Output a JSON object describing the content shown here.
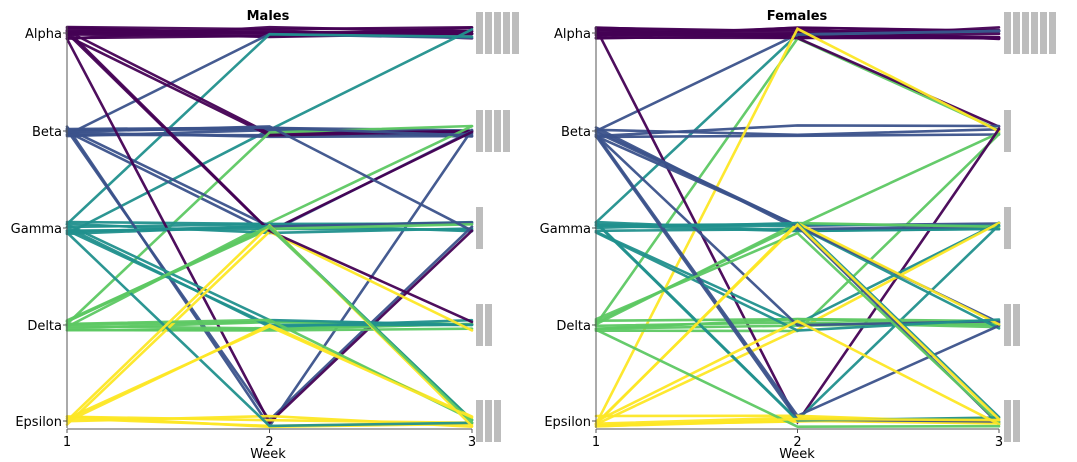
{
  "chart_data": [
    {
      "type": "line",
      "title": "Males",
      "xlabel": "Week",
      "ylabel": "",
      "x": [
        1,
        2,
        3
      ],
      "x_tick_labels": [
        "1",
        "2",
        "3"
      ],
      "categories": [
        "Alpha",
        "Beta",
        "Gamma",
        "Delta",
        "Epsilon"
      ],
      "colors": {
        "Alpha": "#440154",
        "Beta": "#3b528b",
        "Gamma": "#21908d",
        "Delta": "#5dc863",
        "Epsilon": "#fde725"
      },
      "count_bars_week3": [
        5,
        4,
        1,
        2,
        3
      ],
      "trajectories": [
        [
          "Alpha",
          "Alpha",
          "Alpha"
        ],
        [
          "Alpha",
          "Alpha",
          "Alpha"
        ],
        [
          "Alpha",
          "Alpha",
          "Alpha"
        ],
        [
          "Alpha",
          "Alpha",
          "Alpha"
        ],
        [
          "Alpha",
          "Alpha",
          "Alpha"
        ],
        [
          "Alpha",
          "Alpha",
          "Alpha"
        ],
        [
          "Alpha",
          "Alpha",
          "Alpha"
        ],
        [
          "Alpha",
          "Alpha",
          "Alpha"
        ],
        [
          "Alpha",
          "Alpha",
          "Alpha"
        ],
        [
          "Alpha",
          "Alpha",
          "Alpha"
        ],
        [
          "Alpha",
          "Alpha",
          "Alpha"
        ],
        [
          "Beta",
          "Alpha",
          "Alpha"
        ],
        [
          "Gamma",
          "Alpha",
          "Alpha"
        ],
        [
          "Gamma",
          "Beta",
          "Alpha"
        ],
        [
          "Beta",
          "Beta",
          "Beta"
        ],
        [
          "Beta",
          "Beta",
          "Beta"
        ],
        [
          "Beta",
          "Beta",
          "Beta"
        ],
        [
          "Beta",
          "Beta",
          "Beta"
        ],
        [
          "Beta",
          "Beta",
          "Beta"
        ],
        [
          "Alpha",
          "Beta",
          "Beta"
        ],
        [
          "Alpha",
          "Beta",
          "Beta"
        ],
        [
          "Beta",
          "Gamma",
          "Beta"
        ],
        [
          "Delta",
          "Gamma",
          "Beta"
        ],
        [
          "Delta",
          "Beta",
          "Beta"
        ],
        [
          "Beta",
          "Epsilon",
          "Beta"
        ],
        [
          "Beta",
          "Beta",
          "Beta"
        ],
        [
          "Alpha",
          "Gamma",
          "Beta"
        ],
        [
          "Gamma",
          "Gamma",
          "Gamma"
        ],
        [
          "Gamma",
          "Gamma",
          "Gamma"
        ],
        [
          "Gamma",
          "Gamma",
          "Gamma"
        ],
        [
          "Gamma",
          "Gamma",
          "Gamma"
        ],
        [
          "Gamma",
          "Gamma",
          "Gamma"
        ],
        [
          "Beta",
          "Gamma",
          "Gamma"
        ],
        [
          "Beta",
          "Epsilon",
          "Gamma"
        ],
        [
          "Delta",
          "Gamma",
          "Gamma"
        ],
        [
          "Beta",
          "Beta",
          "Gamma"
        ],
        [
          "Alpha",
          "Epsilon",
          "Gamma"
        ],
        [
          "Delta",
          "Delta",
          "Delta"
        ],
        [
          "Delta",
          "Delta",
          "Delta"
        ],
        [
          "Delta",
          "Delta",
          "Delta"
        ],
        [
          "Delta",
          "Delta",
          "Delta"
        ],
        [
          "Delta",
          "Delta",
          "Delta"
        ],
        [
          "Gamma",
          "Delta",
          "Delta"
        ],
        [
          "Gamma",
          "Delta",
          "Delta"
        ],
        [
          "Gamma",
          "Delta",
          "Delta"
        ],
        [
          "Epsilon",
          "Gamma",
          "Delta"
        ],
        [
          "Alpha",
          "Gamma",
          "Delta"
        ],
        [
          "Epsilon",
          "Epsilon",
          "Epsilon"
        ],
        [
          "Epsilon",
          "Epsilon",
          "Epsilon"
        ],
        [
          "Epsilon",
          "Epsilon",
          "Epsilon"
        ],
        [
          "Epsilon",
          "Epsilon",
          "Epsilon"
        ],
        [
          "Delta",
          "Gamma",
          "Epsilon"
        ],
        [
          "Gamma",
          "Gamma",
          "Epsilon"
        ],
        [
          "Epsilon",
          "Delta",
          "Epsilon"
        ],
        [
          "Delta",
          "Delta",
          "Epsilon"
        ],
        [
          "Gamma",
          "Epsilon",
          "Epsilon"
        ],
        [
          "Epsilon",
          "Gamma",
          "Epsilon"
        ],
        [
          "Delta",
          "Gamma",
          "Epsilon"
        ],
        [
          "Epsilon",
          "Delta",
          "Epsilon"
        ]
      ]
    },
    {
      "type": "line",
      "title": "Females",
      "xlabel": "Week",
      "ylabel": "",
      "x": [
        1,
        2,
        3
      ],
      "x_tick_labels": [
        "1",
        "2",
        "3"
      ],
      "categories": [
        "Alpha",
        "Beta",
        "Gamma",
        "Delta",
        "Epsilon"
      ],
      "colors": {
        "Alpha": "#440154",
        "Beta": "#3b528b",
        "Gamma": "#21908d",
        "Delta": "#5dc863",
        "Epsilon": "#fde725"
      },
      "count_bars_week3": [
        6,
        1,
        1,
        2,
        2
      ],
      "trajectories": [
        [
          "Alpha",
          "Alpha",
          "Alpha"
        ],
        [
          "Alpha",
          "Alpha",
          "Alpha"
        ],
        [
          "Alpha",
          "Alpha",
          "Alpha"
        ],
        [
          "Alpha",
          "Alpha",
          "Alpha"
        ],
        [
          "Alpha",
          "Alpha",
          "Alpha"
        ],
        [
          "Alpha",
          "Alpha",
          "Alpha"
        ],
        [
          "Alpha",
          "Alpha",
          "Alpha"
        ],
        [
          "Alpha",
          "Alpha",
          "Alpha"
        ],
        [
          "Alpha",
          "Alpha",
          "Alpha"
        ],
        [
          "Alpha",
          "Alpha",
          "Alpha"
        ],
        [
          "Alpha",
          "Alpha",
          "Alpha"
        ],
        [
          "Alpha",
          "Alpha",
          "Alpha"
        ],
        [
          "Gamma",
          "Alpha",
          "Alpha"
        ],
        [
          "Beta",
          "Alpha",
          "Alpha"
        ],
        [
          "Delta",
          "Alpha",
          "Beta"
        ],
        [
          "Alpha",
          "Alpha",
          "Beta"
        ],
        [
          "Beta",
          "Beta",
          "Beta"
        ],
        [
          "Beta",
          "Beta",
          "Beta"
        ],
        [
          "Beta",
          "Beta",
          "Beta"
        ],
        [
          "Delta",
          "Gamma",
          "Beta"
        ],
        [
          "Epsilon",
          "Alpha",
          "Beta"
        ],
        [
          "Delta",
          "Delta",
          "Beta"
        ],
        [
          "Alpha",
          "Epsilon",
          "Beta"
        ],
        [
          "Gamma",
          "Gamma",
          "Gamma"
        ],
        [
          "Gamma",
          "Gamma",
          "Gamma"
        ],
        [
          "Gamma",
          "Gamma",
          "Gamma"
        ],
        [
          "Beta",
          "Gamma",
          "Gamma"
        ],
        [
          "Beta",
          "Gamma",
          "Gamma"
        ],
        [
          "Gamma",
          "Gamma",
          "Gamma"
        ],
        [
          "Delta",
          "Gamma",
          "Gamma"
        ],
        [
          "Gamma",
          "Delta",
          "Gamma"
        ],
        [
          "Epsilon",
          "Delta",
          "Gamma"
        ],
        [
          "Gamma",
          "Epsilon",
          "Gamma"
        ],
        [
          "Delta",
          "Delta",
          "Delta"
        ],
        [
          "Delta",
          "Delta",
          "Delta"
        ],
        [
          "Delta",
          "Delta",
          "Delta"
        ],
        [
          "Delta",
          "Delta",
          "Delta"
        ],
        [
          "Beta",
          "Delta",
          "Delta"
        ],
        [
          "Gamma",
          "Gamma",
          "Delta"
        ],
        [
          "Beta",
          "Gamma",
          "Delta"
        ],
        [
          "Beta",
          "Epsilon",
          "Delta"
        ],
        [
          "Epsilon",
          "Gamma",
          "Delta"
        ],
        [
          "Gamma",
          "Delta",
          "Delta"
        ],
        [
          "Epsilon",
          "Epsilon",
          "Epsilon"
        ],
        [
          "Epsilon",
          "Epsilon",
          "Epsilon"
        ],
        [
          "Epsilon",
          "Epsilon",
          "Epsilon"
        ],
        [
          "Epsilon",
          "Epsilon",
          "Epsilon"
        ],
        [
          "Beta",
          "Gamma",
          "Epsilon"
        ],
        [
          "Gamma",
          "Gamma",
          "Epsilon"
        ],
        [
          "Beta",
          "Epsilon",
          "Epsilon"
        ],
        [
          "Delta",
          "Gamma",
          "Epsilon"
        ],
        [
          "Gamma",
          "Epsilon",
          "Epsilon"
        ],
        [
          "Epsilon",
          "Gamma",
          "Epsilon"
        ],
        [
          "Epsilon",
          "Delta",
          "Epsilon"
        ],
        [
          "Delta",
          "Epsilon",
          "Epsilon"
        ],
        [
          "Epsilon",
          "Epsilon",
          "Epsilon"
        ]
      ]
    }
  ]
}
